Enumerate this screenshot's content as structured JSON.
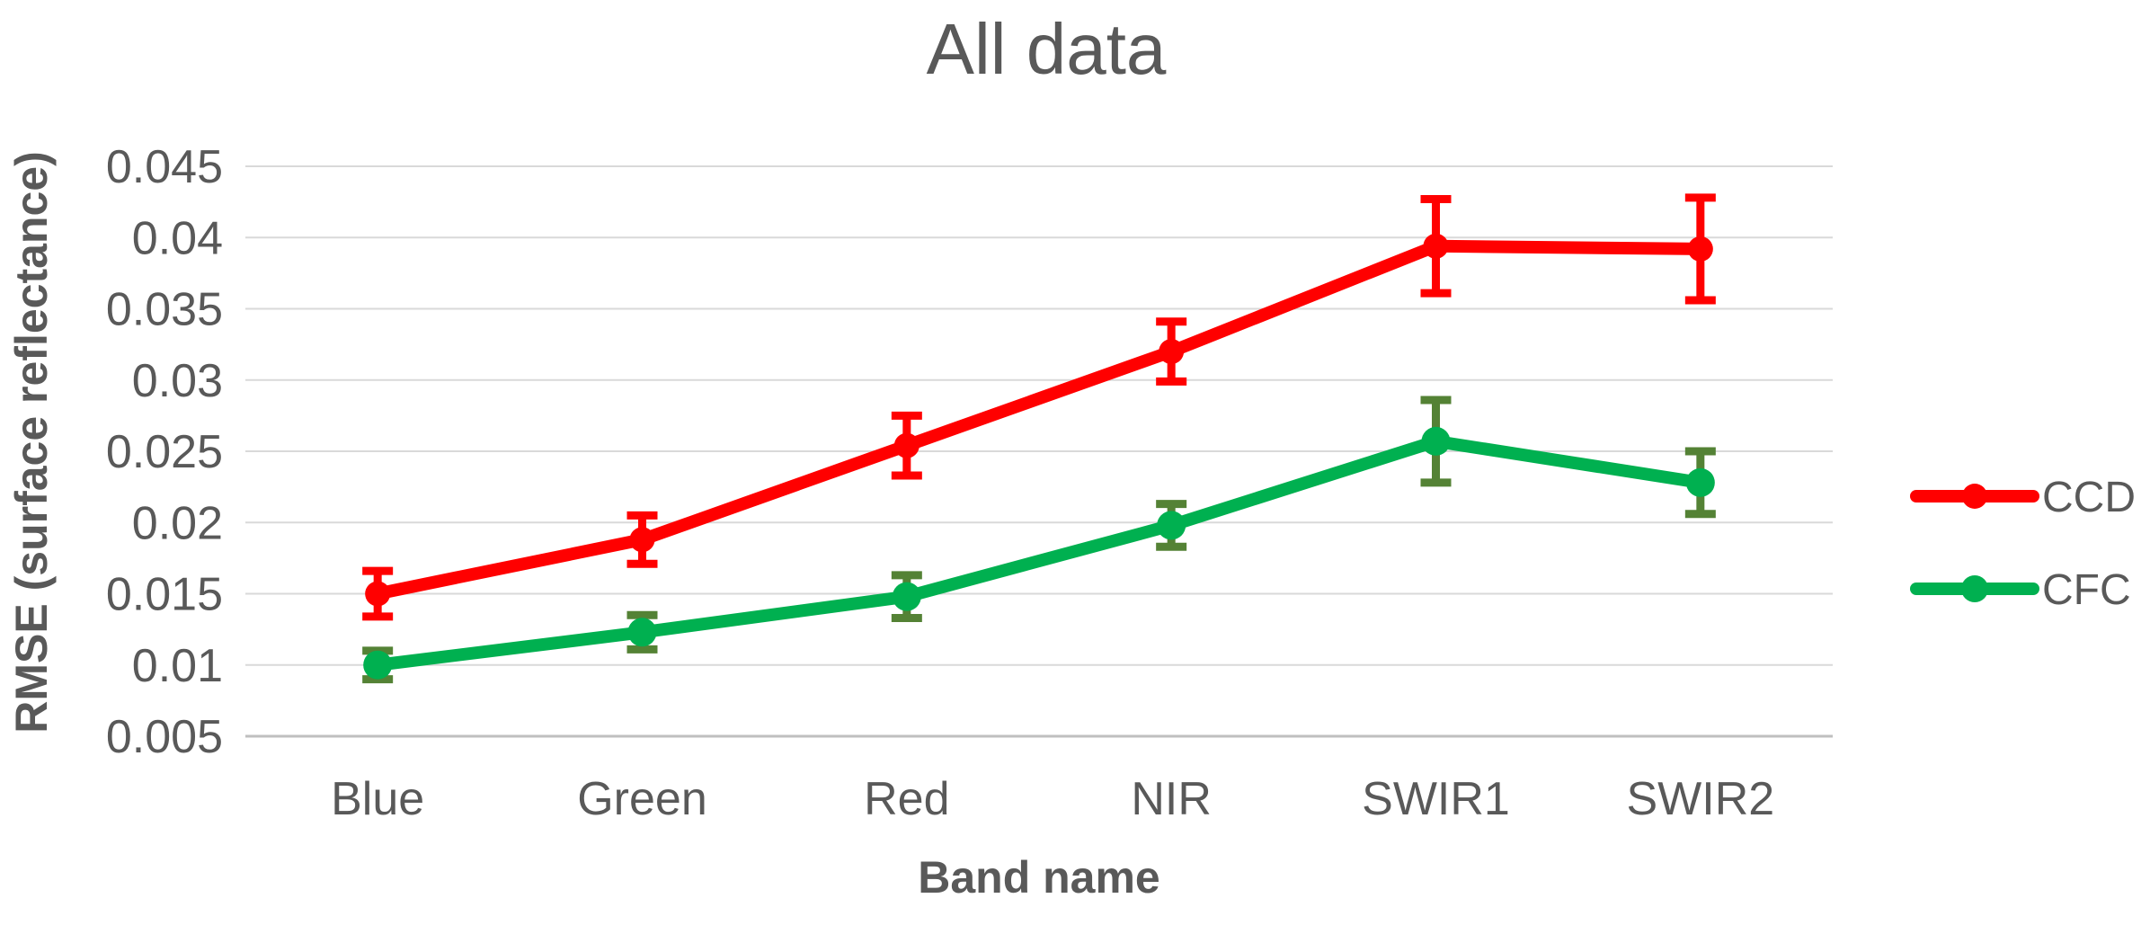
{
  "chart_data": {
    "type": "line",
    "title": "All data",
    "xlabel": "Band name",
    "ylabel": "RMSE (surface reflectance)",
    "categories": [
      "Blue",
      "Green",
      "Red",
      "NIR",
      "SWIR1",
      "SWIR2"
    ],
    "series": [
      {
        "name": "CCD",
        "color": "#FF0000",
        "error_color": "#FF0000",
        "values": [
          0.015,
          0.0188,
          0.0254,
          0.032,
          0.0394,
          0.0392
        ],
        "errors": [
          0.0016,
          0.0017,
          0.0021,
          0.0021,
          0.0033,
          0.0036
        ]
      },
      {
        "name": "CFC",
        "color": "#00B050",
        "error_color": "#548235",
        "values": [
          0.01,
          0.0123,
          0.0148,
          0.0198,
          0.0257,
          0.0228
        ],
        "errors": [
          0.001,
          0.0012,
          0.0015,
          0.0015,
          0.0029,
          0.0022
        ]
      }
    ],
    "ylim": [
      0.005,
      0.045
    ],
    "ytick_step": 0.005,
    "ytick_labels": [
      "0.005",
      "0.01",
      "0.015",
      "0.02",
      "0.025",
      "0.03",
      "0.035",
      "0.04",
      "0.045"
    ],
    "grid": true,
    "legend_position": "right",
    "colors": {
      "text": "#595959",
      "gridline": "#D9D9D9",
      "axis_line": "#BFBFBF"
    }
  }
}
